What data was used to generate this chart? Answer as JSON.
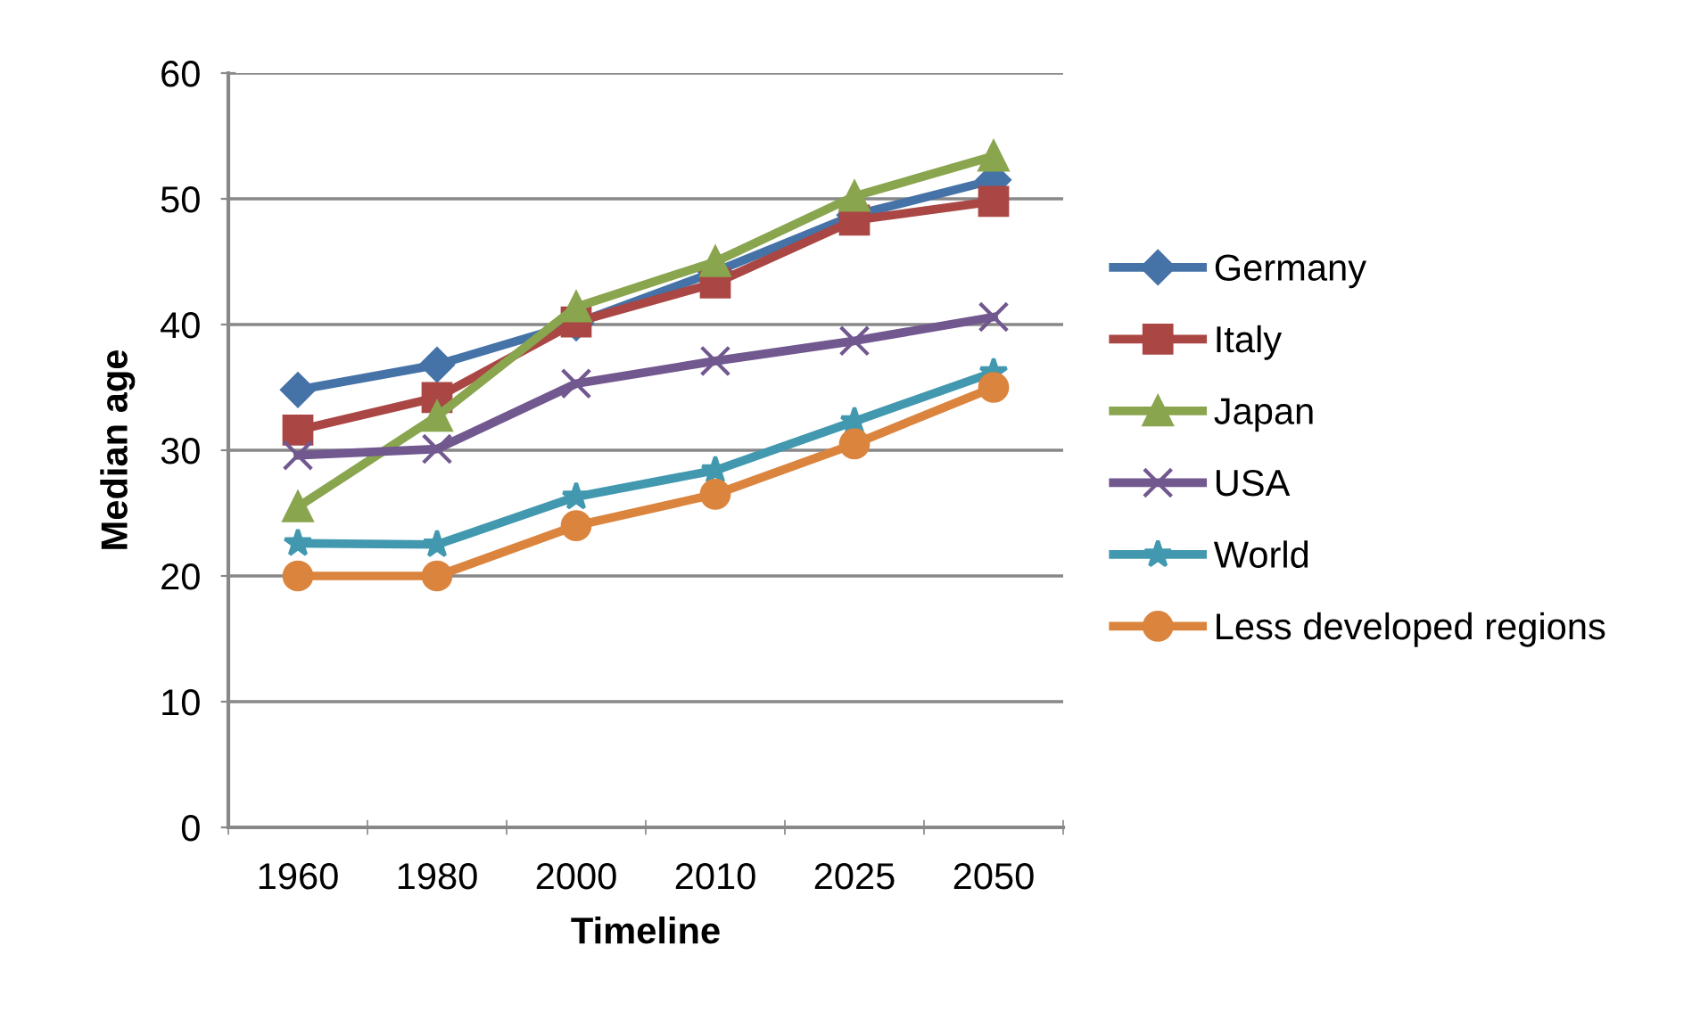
{
  "chart_data": {
    "type": "line",
    "xlabel": "Timeline",
    "ylabel": "Median age",
    "categories": [
      "1960",
      "1980",
      "2000",
      "2010",
      "2025",
      "2050"
    ],
    "ylim": [
      0,
      60
    ],
    "yticks": [
      0,
      10,
      20,
      30,
      40,
      50,
      60
    ],
    "grid": "y",
    "legend": "right",
    "series": [
      {
        "name": "Germany",
        "color": "#4572a7",
        "marker": "diamond",
        "values": [
          34.8,
          36.8,
          40.1,
          44.2,
          48.7,
          51.5
        ]
      },
      {
        "name": "Italy",
        "color": "#aa4643",
        "marker": "square",
        "values": [
          31.6,
          34.2,
          40.2,
          43.3,
          48.3,
          49.8
        ]
      },
      {
        "name": "Japan",
        "color": "#89a54e",
        "marker": "triangle",
        "values": [
          25.5,
          32.7,
          41.4,
          45.0,
          50.2,
          53.4
        ]
      },
      {
        "name": "USA",
        "color": "#71588f",
        "marker": "cross",
        "values": [
          29.6,
          30.1,
          35.3,
          37.1,
          38.7,
          40.6
        ]
      },
      {
        "name": "World",
        "color": "#4198af",
        "marker": "star",
        "values": [
          22.6,
          22.5,
          26.3,
          28.4,
          32.3,
          36.2
        ]
      },
      {
        "name": "Less developed regions",
        "color": "#db843d",
        "marker": "circle",
        "values": [
          20.0,
          20.0,
          24.0,
          26.5,
          30.5,
          35.0
        ]
      }
    ]
  }
}
